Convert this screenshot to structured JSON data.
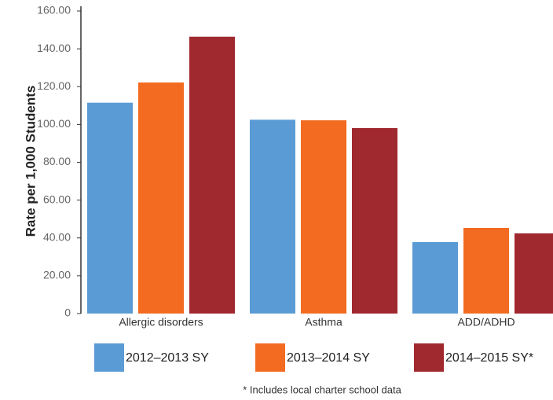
{
  "chart_data": {
    "type": "bar",
    "y_label": "Rate per 1,000 Students",
    "footnote": "* Includes local charter school data",
    "categories": [
      "Allergic disorders",
      "Asthma",
      "ADD/ADHD"
    ],
    "series": [
      {
        "name": "2012–2013 SY",
        "color": "#5b9bd5",
        "values": [
          111.5,
          102.5,
          37.8
        ]
      },
      {
        "name": "2013–2014 SY",
        "color": "#f26b21",
        "values": [
          122.2,
          102.2,
          45.3
        ]
      },
      {
        "name": "2014–2015 SY*",
        "color": "#a0282f",
        "values": [
          146.4,
          98.1,
          42.4
        ]
      }
    ],
    "ylim": [
      0,
      160
    ],
    "yticks": [
      0,
      {
        "value": 20,
        "label": "20.00"
      },
      {
        "value": 40,
        "label": "40.00"
      },
      {
        "value": 60,
        "label": "60.00"
      },
      {
        "value": 80,
        "label": "80.00"
      },
      {
        "value": 100,
        "label": "100.00"
      },
      {
        "value": 120,
        "label": "120.00"
      },
      {
        "value": 140,
        "label": "140.00"
      },
      {
        "value": 160,
        "label": "160.00"
      }
    ],
    "grid": false
  }
}
